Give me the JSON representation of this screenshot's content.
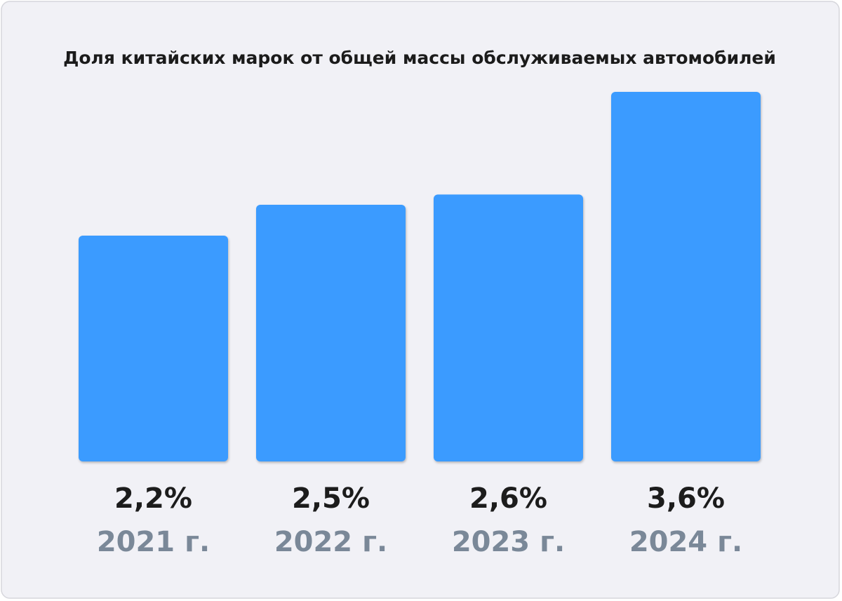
{
  "chart_data": {
    "type": "bar",
    "title": "Доля китайских марок от общей массы обслуживаемых автомобилей",
    "categories": [
      "2021 г.",
      "2022 г.",
      "2023 г.",
      "2024 г."
    ],
    "values": [
      2.2,
      2.5,
      2.6,
      3.6
    ],
    "value_labels": [
      "2,2%",
      "2,5%",
      "2,6%",
      "3,6%"
    ],
    "color": "#3a9bff"
  }
}
